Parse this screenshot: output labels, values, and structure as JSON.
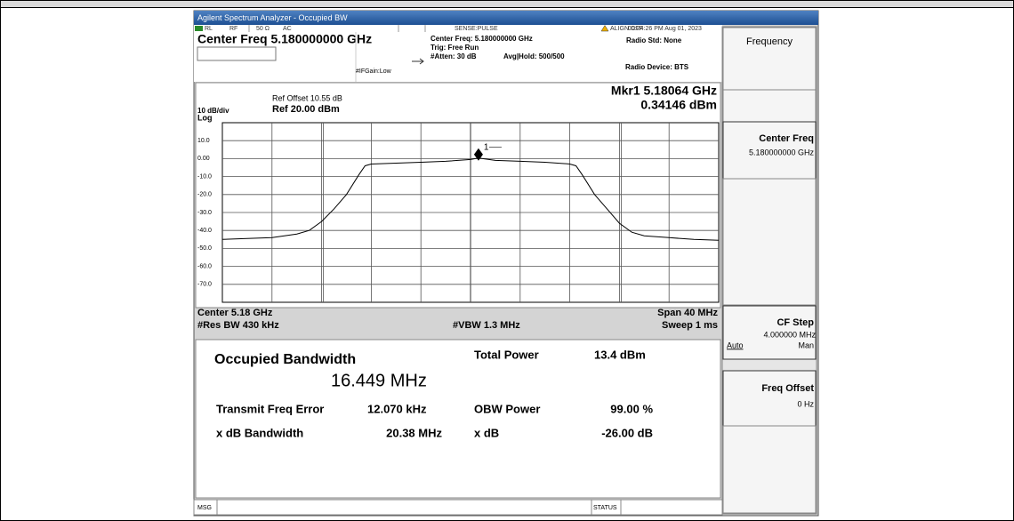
{
  "window": {
    "title": "Agilent Spectrum Analyzer - Occupied BW"
  },
  "status_bar": {
    "rl": "RL",
    "rf": "RF",
    "impedance": "50 Ω",
    "coupling": "AC",
    "sense": "SENSE:PULSE",
    "align": "ALIGN OFF",
    "time": "01:24:26 PM Aug 01, 2023"
  },
  "settings": {
    "center_freq": "Center Freq 5.180000000 GHz",
    "center_freq_info": "Center Freq: 5.180000000 GHz",
    "trig": "Trig: Free Run",
    "avg_hold": "Avg|Hold: 500/500",
    "atten": "#Atten: 30 dB",
    "if_gain": "#IFGain:Low",
    "radio_std": "Radio Std: None",
    "radio_device": "Radio Device: BTS"
  },
  "chart_data": {
    "type": "line",
    "ref_offset": "Ref Offset 10.55 dB",
    "scale_per_div": "10 dB/div",
    "ref_level": "Ref 20.00 dBm",
    "scale_type": "Log",
    "marker_freq": "Mkr1  5.18064 GHz",
    "marker_level": "0.34146 dBm",
    "center": "Center  5.18 GHz",
    "res_bw": "#Res BW  430 kHz",
    "vbw": "#VBW  1.3 MHz",
    "span": "Span 40 MHz",
    "sweep": "Sweep  1 ms",
    "grid": true,
    "xlim": [
      5.16,
      5.2
    ],
    "ylim": [
      -80,
      20
    ],
    "yticks": [
      {
        "value": 10,
        "label": "10.0"
      },
      {
        "value": 0,
        "label": "0.00"
      },
      {
        "value": -10,
        "label": "-10.0"
      },
      {
        "value": -20,
        "label": "-20.0"
      },
      {
        "value": -30,
        "label": "-30.0"
      },
      {
        "value": -40,
        "label": "-40.0"
      },
      {
        "value": -50,
        "label": "-50.0"
      },
      {
        "value": -60,
        "label": "-60.0"
      },
      {
        "value": -70,
        "label": "-70.0"
      }
    ],
    "x": [
      5.16,
      5.162,
      5.164,
      5.166,
      5.167,
      5.168,
      5.169,
      5.17,
      5.171,
      5.1715,
      5.172,
      5.174,
      5.176,
      5.178,
      5.18,
      5.18064,
      5.182,
      5.184,
      5.186,
      5.188,
      5.1885,
      5.189,
      5.19,
      5.191,
      5.192,
      5.193,
      5.194,
      5.196,
      5.198,
      5.2
    ],
    "series": [
      {
        "color": "#000000",
        "values": [
          -45,
          -44.5,
          -44,
          -42,
          -40,
          -35,
          -28,
          -20,
          -9,
          -4,
          -3,
          -2.5,
          -2,
          -1.5,
          -0.5,
          0.34,
          -1,
          -1.5,
          -2,
          -3,
          -4,
          -9,
          -20,
          -28,
          -36,
          -41,
          -43,
          -44,
          -45,
          -45.5
        ]
      }
    ],
    "marker": {
      "label": "1",
      "x": 5.18064,
      "y": 0.34146
    }
  },
  "results": {
    "title": "Occupied Bandwidth",
    "occupied_bw": "16.449 MHz",
    "total_power_label": "Total Power",
    "total_power": "13.4 dBm",
    "rows": [
      [
        "Transmit Freq Error",
        "12.070 kHz",
        "OBW Power",
        "99.00 %"
      ],
      [
        "x dB Bandwidth",
        "20.38 MHz",
        "x dB",
        "-26.00 dB"
      ]
    ]
  },
  "softkeys": {
    "menu": "Frequency",
    "center_freq": {
      "label": "Center Freq",
      "value": "5.180000000 GHz"
    },
    "cf_step": {
      "label": "CF Step",
      "value": "4.000000 MHz",
      "auto": "Auto",
      "man": "Man"
    },
    "freq_offset": {
      "label": "Freq Offset",
      "value": "0 Hz"
    }
  },
  "message_bar": {
    "msg": "MSG",
    "status": "STATUS"
  }
}
